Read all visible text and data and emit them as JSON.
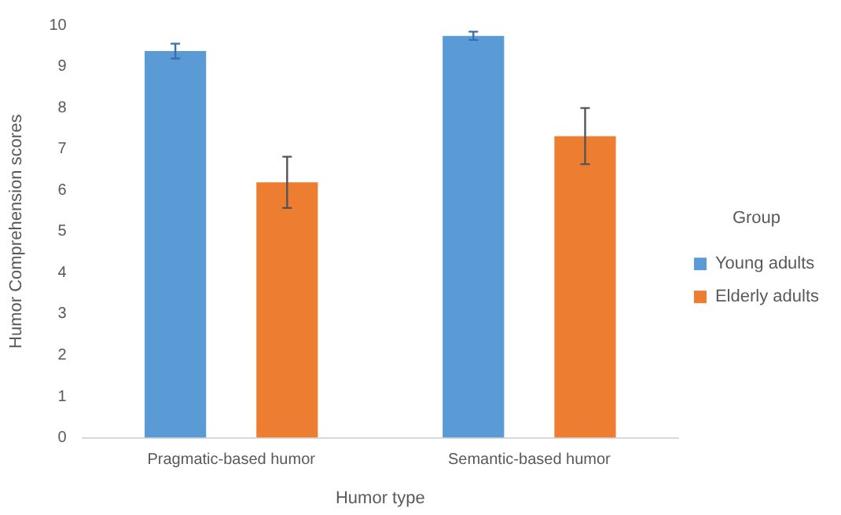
{
  "chart_data": {
    "type": "bar",
    "xlabel": "Humor type",
    "ylabel": "Humor Comprehension scores",
    "legend_title": "Group",
    "categories": [
      "Pragmatic-based humor",
      "Semantic-based humor"
    ],
    "series": [
      {
        "name": "Young adults",
        "color": "#5b9bd5",
        "values": [
          9.37,
          9.74
        ],
        "errors": [
          0.18,
          0.1
        ]
      },
      {
        "name": "Elderly adults",
        "color": "#ed7d31",
        "values": [
          6.19,
          7.31
        ],
        "errors": [
          0.62,
          0.68
        ]
      }
    ],
    "ylim": [
      0,
      10
    ],
    "yticks": [
      0,
      1,
      2,
      3,
      4,
      5,
      6,
      7,
      8,
      9,
      10
    ],
    "grid": false,
    "legend": "right"
  }
}
